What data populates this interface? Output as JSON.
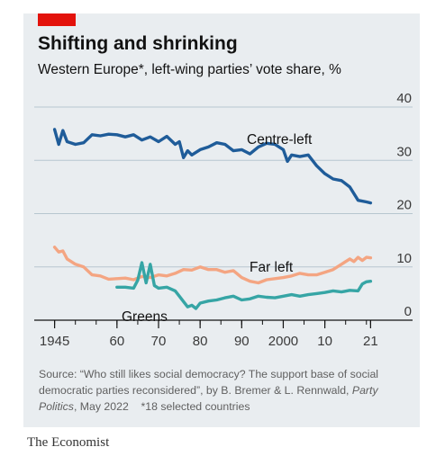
{
  "title": "Shifting and shrinking",
  "subtitle": "Western Europe*, left-wing parties’ vote share, %",
  "source": {
    "prefix": "Source: “Who still likes social democracy? The support base of social democratic parties reconsidered”, by B. Bremer & L. Rennwald, ",
    "journal": "Party Politics",
    "suffix": ", May 2022",
    "footnote": "*18 selected countries"
  },
  "logo": "The Economist",
  "colors": {
    "centre_left": "#1f5c99",
    "far_left": "#f4a582",
    "greens": "#36a5a5",
    "brand_red": "#e3120b",
    "gridline": "#b7c6cf",
    "background": "#e9edf0"
  },
  "chart_data": {
    "type": "line",
    "xlim": [
      1944,
      2022
    ],
    "ylim": [
      0,
      40
    ],
    "x_ticks": [
      {
        "value": 1945,
        "label": "1945"
      },
      {
        "value": 1960,
        "label": "60"
      },
      {
        "value": 1970,
        "label": "70"
      },
      {
        "value": 1980,
        "label": "80"
      },
      {
        "value": 1990,
        "label": "90"
      },
      {
        "value": 2000,
        "label": "2000"
      },
      {
        "value": 2010,
        "label": "10"
      },
      {
        "value": 2021,
        "label": "21"
      }
    ],
    "y_ticks": [
      {
        "value": 0,
        "label": "0"
      },
      {
        "value": 10,
        "label": "10"
      },
      {
        "value": 20,
        "label": "20"
      },
      {
        "value": 30,
        "label": "30"
      },
      {
        "value": 40,
        "label": "40"
      }
    ],
    "grid": true,
    "series": [
      {
        "name": "Centre-left",
        "color_key": "centre_left",
        "points": [
          [
            1945,
            35.8
          ],
          [
            1946,
            33.0
          ],
          [
            1947,
            35.6
          ],
          [
            1948,
            33.5
          ],
          [
            1950,
            33.0
          ],
          [
            1952,
            33.3
          ],
          [
            1954,
            34.8
          ],
          [
            1956,
            34.6
          ],
          [
            1958,
            34.9
          ],
          [
            1960,
            34.8
          ],
          [
            1962,
            34.4
          ],
          [
            1964,
            34.8
          ],
          [
            1966,
            33.8
          ],
          [
            1968,
            34.4
          ],
          [
            1970,
            33.5
          ],
          [
            1972,
            34.5
          ],
          [
            1974,
            33.0
          ],
          [
            1975,
            33.5
          ],
          [
            1976,
            30.5
          ],
          [
            1977,
            31.8
          ],
          [
            1978,
            31.0
          ],
          [
            1980,
            32.0
          ],
          [
            1982,
            32.5
          ],
          [
            1984,
            33.3
          ],
          [
            1986,
            33.0
          ],
          [
            1988,
            31.8
          ],
          [
            1990,
            32.0
          ],
          [
            1992,
            31.2
          ],
          [
            1994,
            32.5
          ],
          [
            1996,
            33.2
          ],
          [
            1998,
            33.0
          ],
          [
            2000,
            32.0
          ],
          [
            2001,
            29.8
          ],
          [
            2002,
            31.0
          ],
          [
            2004,
            30.7
          ],
          [
            2006,
            31.0
          ],
          [
            2008,
            29.0
          ],
          [
            2010,
            27.5
          ],
          [
            2012,
            26.5
          ],
          [
            2014,
            26.2
          ],
          [
            2016,
            25.0
          ],
          [
            2018,
            22.5
          ],
          [
            2020,
            22.2
          ],
          [
            2021,
            22.0
          ]
        ]
      },
      {
        "name": "Far left",
        "color_key": "far_left",
        "points": [
          [
            1945,
            13.7
          ],
          [
            1946,
            12.8
          ],
          [
            1947,
            13.0
          ],
          [
            1948,
            11.5
          ],
          [
            1950,
            10.5
          ],
          [
            1952,
            10.0
          ],
          [
            1954,
            8.5
          ],
          [
            1956,
            8.3
          ],
          [
            1958,
            7.7
          ],
          [
            1960,
            7.8
          ],
          [
            1962,
            7.9
          ],
          [
            1964,
            7.6
          ],
          [
            1966,
            8.2
          ],
          [
            1968,
            8.0
          ],
          [
            1970,
            8.5
          ],
          [
            1972,
            8.3
          ],
          [
            1974,
            8.8
          ],
          [
            1976,
            9.5
          ],
          [
            1978,
            9.4
          ],
          [
            1980,
            10.0
          ],
          [
            1982,
            9.5
          ],
          [
            1984,
            9.5
          ],
          [
            1986,
            9.0
          ],
          [
            1988,
            9.3
          ],
          [
            1990,
            8.0
          ],
          [
            1992,
            7.3
          ],
          [
            1994,
            7.0
          ],
          [
            1996,
            7.6
          ],
          [
            1998,
            7.8
          ],
          [
            2000,
            8.0
          ],
          [
            2002,
            8.3
          ],
          [
            2004,
            8.8
          ],
          [
            2006,
            8.5
          ],
          [
            2008,
            8.5
          ],
          [
            2010,
            9.0
          ],
          [
            2012,
            9.5
          ],
          [
            2014,
            10.5
          ],
          [
            2016,
            11.5
          ],
          [
            2017,
            11.0
          ],
          [
            2018,
            11.8
          ],
          [
            2019,
            11.2
          ],
          [
            2020,
            11.8
          ],
          [
            2021,
            11.7
          ]
        ]
      },
      {
        "name": "Greens",
        "color_key": "greens",
        "points": [
          [
            1960,
            6.2
          ],
          [
            1962,
            6.2
          ],
          [
            1964,
            6.0
          ],
          [
            1965,
            7.5
          ],
          [
            1966,
            10.8
          ],
          [
            1967,
            7.0
          ],
          [
            1968,
            10.5
          ],
          [
            1969,
            6.5
          ],
          [
            1970,
            6.0
          ],
          [
            1972,
            6.2
          ],
          [
            1974,
            5.5
          ],
          [
            1975,
            4.5
          ],
          [
            1976,
            3.5
          ],
          [
            1977,
            2.5
          ],
          [
            1978,
            2.8
          ],
          [
            1979,
            2.2
          ],
          [
            1980,
            3.2
          ],
          [
            1982,
            3.6
          ],
          [
            1984,
            3.8
          ],
          [
            1986,
            4.2
          ],
          [
            1988,
            4.5
          ],
          [
            1990,
            3.8
          ],
          [
            1992,
            4.0
          ],
          [
            1994,
            4.5
          ],
          [
            1996,
            4.3
          ],
          [
            1998,
            4.2
          ],
          [
            2000,
            4.5
          ],
          [
            2002,
            4.8
          ],
          [
            2004,
            4.5
          ],
          [
            2006,
            4.8
          ],
          [
            2008,
            5.0
          ],
          [
            2010,
            5.2
          ],
          [
            2012,
            5.5
          ],
          [
            2014,
            5.3
          ],
          [
            2016,
            5.6
          ],
          [
            2018,
            5.5
          ],
          [
            2019,
            6.8
          ],
          [
            2020,
            7.2
          ],
          [
            2021,
            7.3
          ]
        ]
      }
    ],
    "series_labels": [
      {
        "series": "Centre-left",
        "text": "Centre-left"
      },
      {
        "series": "Far left",
        "text": "Far left"
      },
      {
        "series": "Greens",
        "text": "Greens"
      }
    ]
  }
}
